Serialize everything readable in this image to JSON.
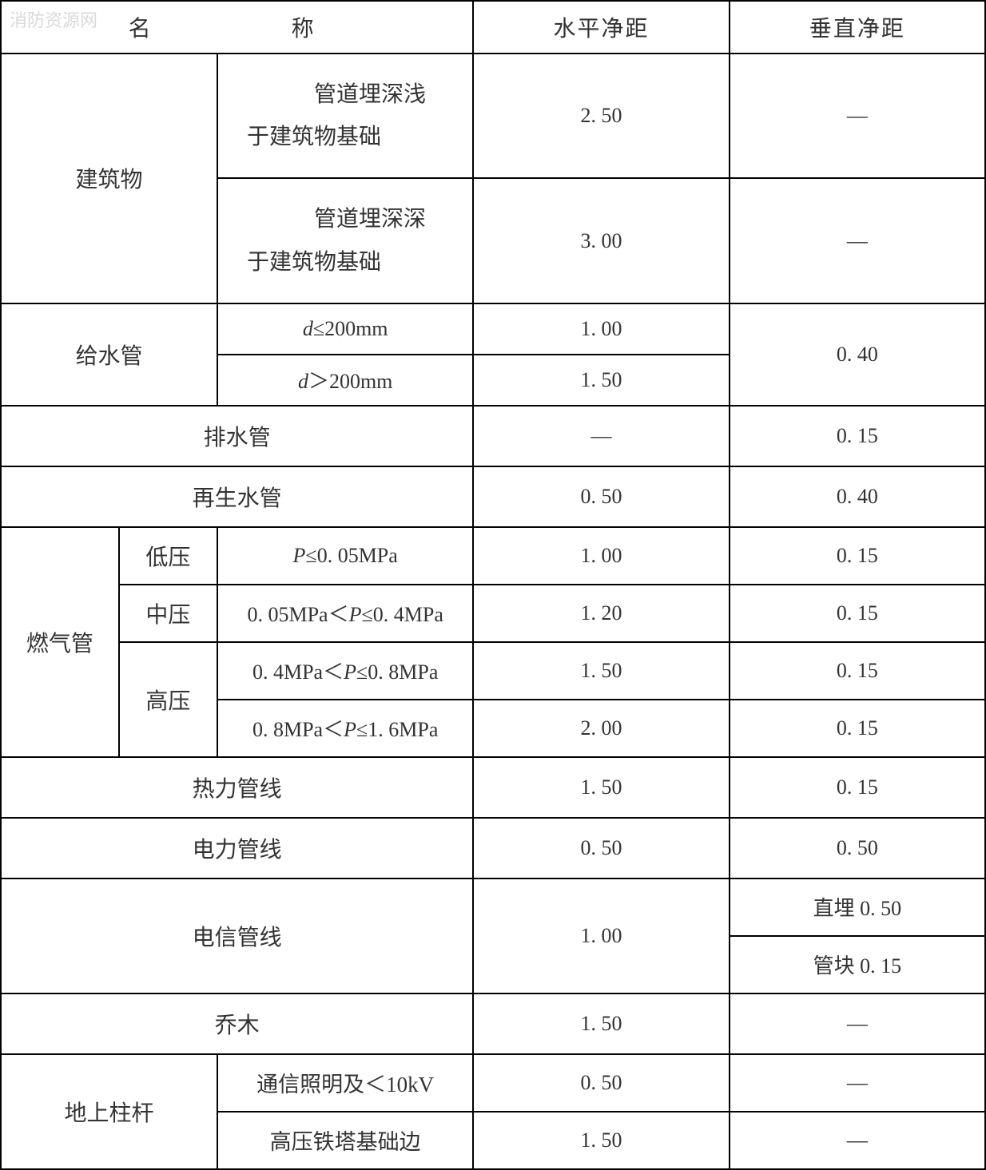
{
  "watermark": "消防资源网",
  "headers": {
    "name": "名　　称",
    "horizontal": "水平净距",
    "vertical": "垂直净距"
  },
  "colors": {
    "border": "#000000",
    "text": "#333333",
    "watermark": "#d9d9d9",
    "background": "#ffffff"
  },
  "column_widths_pct": [
    12,
    10,
    26,
    26,
    26
  ],
  "rows": {
    "building": {
      "label": "建筑物",
      "sub": [
        {
          "cond": "　管道埋深浅于建筑物基础",
          "h": "2. 50",
          "v": "—"
        },
        {
          "cond": "　管道埋深深于建筑物基础",
          "h": "3. 00",
          "v": "—"
        }
      ]
    },
    "water_supply": {
      "label": "给水管",
      "sub": [
        {
          "cond_html": "<span class='ital'>d</span>≤200mm",
          "h": "1. 00"
        },
        {
          "cond_html": "<span class='ital'>d</span>＞200mm",
          "h": "1. 50"
        }
      ],
      "v": "0. 40"
    },
    "drain": {
      "label": "排水管",
      "h": "—",
      "v": "0. 15"
    },
    "reclaimed": {
      "label": "再生水管",
      "h": "0. 50",
      "v": "0. 40"
    },
    "gas": {
      "label": "燃气管",
      "sub": [
        {
          "press": "低压",
          "cond_html": "<span class='ital'>P</span>≤0. 05MPa",
          "h": "1. 00",
          "v": "0. 15"
        },
        {
          "press": "中压",
          "cond_html": "0. 05MPa＜<span class='ital'>P</span>≤0. 4MPa",
          "h": "1. 20",
          "v": "0. 15"
        },
        {
          "press": "高压",
          "cond_html": "0. 4MPa＜<span class='ital'>P</span>≤0. 8MPa",
          "h": "1. 50",
          "v": "0. 15"
        },
        {
          "cond_html": "0. 8MPa＜<span class='ital'>P</span>≤1. 6MPa",
          "h": "2. 00",
          "v": "0. 15"
        }
      ]
    },
    "heat": {
      "label": "热力管线",
      "h": "1. 50",
      "v": "0. 15"
    },
    "power": {
      "label": "电力管线",
      "h": "0. 50",
      "v": "0. 50"
    },
    "telecom": {
      "label": "电信管线",
      "h": "1. 00",
      "v_sub": [
        {
          "text": "直埋 0. 50"
        },
        {
          "text": "管块 0. 15"
        }
      ]
    },
    "tree": {
      "label": "乔木",
      "h": "1. 50",
      "v": "—"
    },
    "pole": {
      "label": "地上柱杆",
      "sub": [
        {
          "cond": "通信照明及＜10kV",
          "h": "0. 50",
          "v": "—"
        },
        {
          "cond": "高压铁塔基础边",
          "h": "1. 50",
          "v": "—"
        }
      ]
    }
  }
}
